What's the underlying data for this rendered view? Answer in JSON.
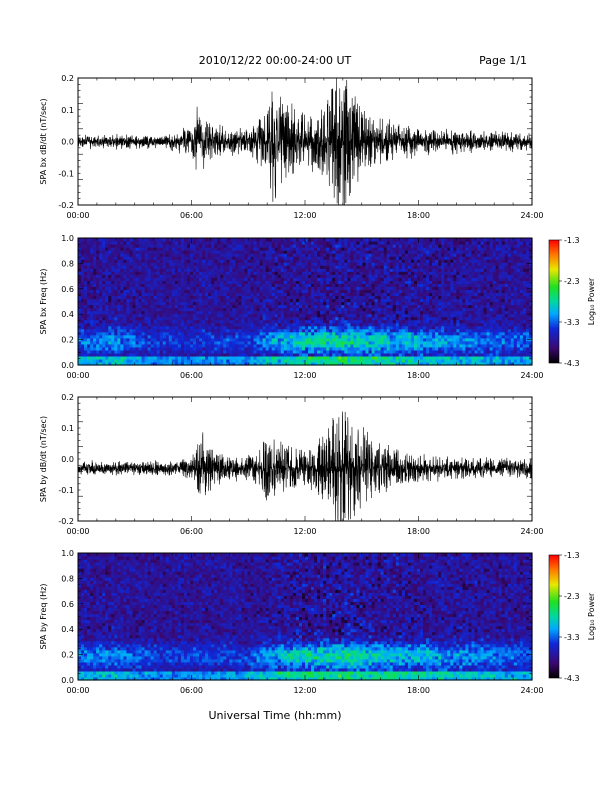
{
  "header": {
    "title": "2010/12/22  00:00-24:00 UT",
    "page": "Page 1/1"
  },
  "xlabel": "Universal Time (hh:mm)",
  "chart_data": [
    {
      "type": "line",
      "ylabel": "SPA bx dB/dt (nT/sec)",
      "xlim": [
        0,
        24
      ],
      "x_tick_labels": [
        "00:00",
        "06:00",
        "12:00",
        "18:00",
        "24:00"
      ],
      "ylim": [
        -0.2,
        0.2
      ],
      "y_ticks": [
        -0.2,
        -0.1,
        0.0,
        0.1,
        0.2
      ],
      "y_tick_labels": [
        "-0.2",
        "-0.1",
        "0.0",
        "0.1",
        "0.2"
      ],
      "baseline": 0.0,
      "noise_level": 0.012,
      "envelope": [
        [
          0,
          0.015
        ],
        [
          4.5,
          0.015
        ],
        [
          5.5,
          0.03
        ],
        [
          6.0,
          0.05
        ],
        [
          6.3,
          0.12
        ],
        [
          6.8,
          0.06
        ],
        [
          8.0,
          0.04
        ],
        [
          9.0,
          0.04
        ],
        [
          10.0,
          0.1
        ],
        [
          10.4,
          0.25
        ],
        [
          10.8,
          0.15
        ],
        [
          11.5,
          0.1
        ],
        [
          12.0,
          0.08
        ],
        [
          12.8,
          0.1
        ],
        [
          13.5,
          0.18
        ],
        [
          13.8,
          0.25
        ],
        [
          14.2,
          0.2
        ],
        [
          15.0,
          0.1
        ],
        [
          16.0,
          0.07
        ],
        [
          17.0,
          0.05
        ],
        [
          18.0,
          0.04
        ],
        [
          20.0,
          0.03
        ],
        [
          22.0,
          0.025
        ],
        [
          24.0,
          0.025
        ]
      ]
    },
    {
      "type": "heatmap",
      "ylabel": "SPA bx Freq (Hz)",
      "xlim": [
        0,
        24
      ],
      "x_tick_labels": [
        "00:00",
        "06:00",
        "12:00",
        "18:00",
        "24:00"
      ],
      "ylim": [
        0.0,
        1.0
      ],
      "y_ticks": [
        0.0,
        0.2,
        0.4,
        0.6,
        0.8,
        1.0
      ],
      "y_tick_labels": [
        "0.0",
        "0.2",
        "0.4",
        "0.6",
        "0.8",
        "1.0"
      ],
      "colorbar": {
        "label": "Log₁₀ Power",
        "range": [
          -4.3,
          -1.3
        ],
        "tick_values": [
          -1.3,
          -2.3,
          -3.3,
          -4.3
        ],
        "tick_labels": [
          "-1.3",
          "-2.3",
          "-3.3",
          "-4.3"
        ]
      },
      "band_activity": [
        [
          0,
          0.5
        ],
        [
          2.0,
          0.6
        ],
        [
          3.5,
          0.35
        ],
        [
          5.0,
          0.3
        ],
        [
          6.5,
          0.35
        ],
        [
          9.0,
          0.3
        ],
        [
          10.0,
          0.6
        ],
        [
          11.0,
          0.8
        ],
        [
          12.5,
          0.9
        ],
        [
          14.0,
          1.0
        ],
        [
          15.5,
          0.85
        ],
        [
          17.0,
          0.75
        ],
        [
          19.0,
          0.65
        ],
        [
          21.0,
          0.55
        ],
        [
          23.0,
          0.45
        ],
        [
          24.0,
          0.4
        ]
      ]
    },
    {
      "type": "line",
      "ylabel": "SPA by dB/dt (nT/sec)",
      "xlim": [
        0,
        24
      ],
      "x_tick_labels": [
        "00:00",
        "06:00",
        "12:00",
        "18:00",
        "24:00"
      ],
      "ylim": [
        -0.2,
        0.2
      ],
      "y_ticks": [
        -0.2,
        -0.1,
        0.0,
        0.1,
        0.2
      ],
      "y_tick_labels": [
        "-0.2",
        "-0.1",
        "0.0",
        "0.1",
        "0.2"
      ],
      "baseline": -0.03,
      "noise_level": 0.012,
      "envelope": [
        [
          0,
          0.015
        ],
        [
          5.0,
          0.015
        ],
        [
          6.0,
          0.03
        ],
        [
          6.6,
          0.12
        ],
        [
          7.2,
          0.05
        ],
        [
          8.5,
          0.03
        ],
        [
          9.5,
          0.05
        ],
        [
          10.0,
          0.12
        ],
        [
          10.5,
          0.08
        ],
        [
          11.5,
          0.06
        ],
        [
          12.5,
          0.07
        ],
        [
          13.5,
          0.16
        ],
        [
          14.0,
          0.25
        ],
        [
          14.5,
          0.18
        ],
        [
          15.2,
          0.12
        ],
        [
          16.0,
          0.08
        ],
        [
          17.0,
          0.05
        ],
        [
          18.0,
          0.04
        ],
        [
          20.0,
          0.03
        ],
        [
          24.0,
          0.025
        ]
      ]
    },
    {
      "type": "heatmap",
      "ylabel": "SPA by Freq (Hz)",
      "xlim": [
        0,
        24
      ],
      "x_tick_labels": [
        "00:00",
        "06:00",
        "12:00",
        "18:00",
        "24:00"
      ],
      "ylim": [
        0.0,
        1.0
      ],
      "y_ticks": [
        0.0,
        0.2,
        0.4,
        0.6,
        0.8,
        1.0
      ],
      "y_tick_labels": [
        "0.0",
        "0.2",
        "0.4",
        "0.6",
        "0.8",
        "1.0"
      ],
      "colorbar": {
        "label": "Log₁₀ Power",
        "range": [
          -4.3,
          -1.3
        ],
        "tick_values": [
          -1.3,
          -2.3,
          -3.3,
          -4.3
        ],
        "tick_labels": [
          "-1.3",
          "-2.3",
          "-3.3",
          "-4.3"
        ]
      },
      "band_activity": [
        [
          0,
          0.5
        ],
        [
          2.0,
          0.55
        ],
        [
          3.5,
          0.4
        ],
        [
          5.0,
          0.3
        ],
        [
          7.0,
          0.35
        ],
        [
          9.0,
          0.35
        ],
        [
          10.0,
          0.65
        ],
        [
          11.0,
          0.8
        ],
        [
          12.5,
          0.95
        ],
        [
          14.0,
          1.0
        ],
        [
          15.5,
          0.9
        ],
        [
          17.0,
          0.8
        ],
        [
          19.0,
          0.7
        ],
        [
          21.0,
          0.6
        ],
        [
          23.0,
          0.5
        ],
        [
          24.0,
          0.45
        ]
      ]
    }
  ]
}
